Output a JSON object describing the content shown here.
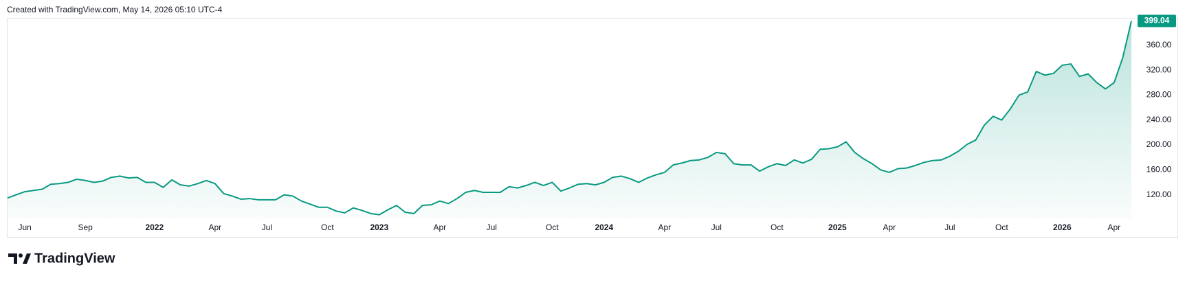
{
  "attribution": "Created with TradingView.com, May 14, 2026 05:10 UTC-4",
  "branding": "TradingView",
  "chart_data": {
    "type": "area",
    "color": "#089981",
    "grid": false,
    "categories": [
      null,
      null,
      "Jun",
      null,
      null,
      null,
      null,
      null,
      null,
      "Sep",
      null,
      null,
      null,
      null,
      null,
      null,
      null,
      "2022",
      null,
      null,
      null,
      null,
      null,
      null,
      "Apr",
      null,
      null,
      null,
      null,
      null,
      "Jul",
      null,
      null,
      null,
      null,
      null,
      null,
      "Oct",
      null,
      null,
      null,
      null,
      null,
      "2023",
      null,
      null,
      null,
      null,
      null,
      null,
      "Apr",
      null,
      null,
      null,
      null,
      null,
      "Jul",
      null,
      null,
      null,
      null,
      null,
      null,
      "Oct",
      null,
      null,
      null,
      null,
      null,
      "2024",
      null,
      null,
      null,
      null,
      null,
      null,
      "Apr",
      null,
      null,
      null,
      null,
      null,
      "Jul",
      null,
      null,
      null,
      null,
      null,
      null,
      "Oct",
      null,
      null,
      null,
      null,
      null,
      null,
      "2025",
      null,
      null,
      null,
      null,
      null,
      "Apr",
      null,
      null,
      null,
      null,
      null,
      null,
      "Jul",
      null,
      null,
      null,
      null,
      null,
      "Oct",
      null,
      null,
      null,
      null,
      null,
      null,
      "2026",
      null,
      null,
      null,
      null,
      null,
      "Apr",
      null,
      null
    ],
    "values": [
      115,
      120,
      125,
      127,
      129,
      137,
      138,
      140,
      145,
      143,
      140,
      142,
      148,
      150,
      147,
      148,
      140,
      140,
      132,
      144,
      136,
      134,
      138,
      143,
      138,
      122,
      118,
      113,
      114,
      112,
      112,
      112,
      120,
      118,
      110,
      105,
      100,
      100,
      94,
      91,
      99,
      95,
      90,
      88,
      96,
      103,
      92,
      90,
      103,
      104,
      110,
      106,
      114,
      124,
      127,
      124,
      124,
      124,
      133,
      131,
      135,
      140,
      135,
      140,
      126,
      131,
      137,
      138,
      136,
      140,
      148,
      150,
      146,
      140,
      147,
      152,
      156,
      168,
      171,
      175,
      176,
      180,
      188,
      186,
      170,
      168,
      168,
      158,
      165,
      170,
      167,
      176,
      171,
      177,
      193,
      194,
      197,
      205,
      188,
      178,
      170,
      160,
      156,
      162,
      163,
      167,
      172,
      175,
      176,
      182,
      190,
      201,
      208,
      232,
      246,
      240,
      258,
      280,
      285,
      318,
      312,
      315,
      328,
      330,
      310,
      314,
      300,
      290,
      300,
      340,
      399.04
    ],
    "last_price_label": "399.04",
    "ylim": [
      81,
      404
    ],
    "yticks": [
      {
        "value": 120,
        "label": "120.00"
      },
      {
        "value": 160,
        "label": "160.00"
      },
      {
        "value": 200,
        "label": "200.00"
      },
      {
        "value": 240,
        "label": "240.00"
      },
      {
        "value": 280,
        "label": "280.00"
      },
      {
        "value": 320,
        "label": "320.00"
      },
      {
        "value": 360,
        "label": "360.00"
      }
    ]
  }
}
